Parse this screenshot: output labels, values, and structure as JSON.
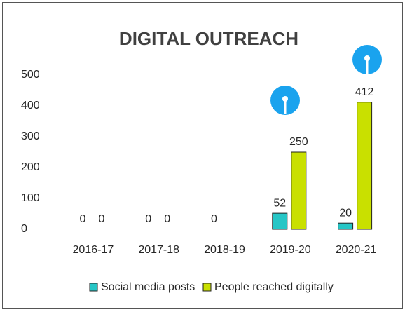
{
  "chart_data": {
    "type": "bar",
    "title": "DIGITAL OUTREACH",
    "categories": [
      "2016-17",
      "2017-18",
      "2018-19",
      "2019-20",
      "2020-21"
    ],
    "series": [
      {
        "name": "Social media posts",
        "color": "#26c6c6",
        "values": [
          0,
          0,
          0,
          52,
          20
        ]
      },
      {
        "name": "People reached digitally",
        "color": "#c9e000",
        "values": [
          0,
          0,
          null,
          250,
          412
        ]
      }
    ],
    "ylim": [
      0,
      500
    ],
    "yticks": [
      0,
      100,
      200,
      300,
      400,
      500
    ],
    "grid": false,
    "legend": "bottom"
  }
}
